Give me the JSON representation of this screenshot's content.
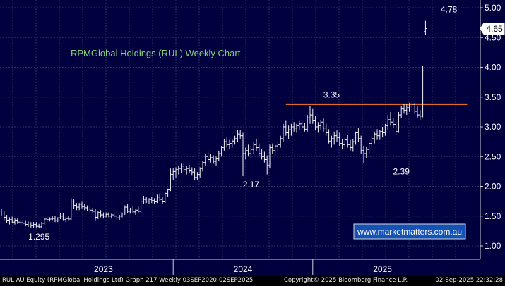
{
  "chart_data": {
    "type": "ohlc",
    "title": "RPMGlobal Holdings (RUL) Weekly Chart",
    "watermark": "www.marketmatters.com.au",
    "yticks": [
      "5.00",
      "4.50",
      "4.00",
      "3.50",
      "3.00",
      "2.50",
      "2.00",
      "1.50",
      "1.00"
    ],
    "ylim": [
      0.95,
      5.1
    ],
    "xlabels": [
      {
        "label": "2023",
        "week": 38
      },
      {
        "label": "2024",
        "week": 90
      },
      {
        "label": "2025",
        "week": 142
      }
    ],
    "year_dividers": [
      64,
      116
    ],
    "grid": true,
    "last_price": "4.65",
    "resistance": {
      "value": 3.38,
      "from_week": 106,
      "to_week": 173
    },
    "annotations": [
      {
        "text": "1.295",
        "week": 14,
        "value": 1.295
      },
      {
        "text": "2.17",
        "week": 93,
        "value": 2.17
      },
      {
        "text": "3.35",
        "week": 123,
        "value": 3.35
      },
      {
        "text": "2.39",
        "week": 149,
        "value": 2.39
      },
      {
        "text": "4.78",
        "week": 172,
        "value": 4.78
      }
    ],
    "bars": [
      [
        1.55,
        1.62,
        1.5,
        1.55
      ],
      [
        1.55,
        1.58,
        1.42,
        1.48
      ],
      [
        1.48,
        1.52,
        1.38,
        1.42
      ],
      [
        1.42,
        1.48,
        1.36,
        1.44
      ],
      [
        1.44,
        1.49,
        1.38,
        1.4
      ],
      [
        1.4,
        1.46,
        1.36,
        1.42
      ],
      [
        1.42,
        1.46,
        1.37,
        1.4
      ],
      [
        1.4,
        1.44,
        1.35,
        1.39
      ],
      [
        1.39,
        1.44,
        1.34,
        1.38
      ],
      [
        1.38,
        1.42,
        1.33,
        1.36
      ],
      [
        1.36,
        1.41,
        1.32,
        1.35
      ],
      [
        1.35,
        1.4,
        1.3,
        1.34
      ],
      [
        1.34,
        1.4,
        1.3,
        1.36
      ],
      [
        1.36,
        1.4,
        1.31,
        1.33
      ],
      [
        1.33,
        1.37,
        1.295,
        1.32
      ],
      [
        1.32,
        1.4,
        1.3,
        1.38
      ],
      [
        1.38,
        1.46,
        1.36,
        1.45
      ],
      [
        1.45,
        1.49,
        1.4,
        1.44
      ],
      [
        1.44,
        1.48,
        1.41,
        1.45
      ],
      [
        1.45,
        1.5,
        1.42,
        1.46
      ],
      [
        1.46,
        1.5,
        1.4,
        1.43
      ],
      [
        1.43,
        1.48,
        1.4,
        1.47
      ],
      [
        1.47,
        1.55,
        1.45,
        1.5
      ],
      [
        1.5,
        1.55,
        1.42,
        1.44
      ],
      [
        1.44,
        1.48,
        1.4,
        1.46
      ],
      [
        1.46,
        1.5,
        1.42,
        1.45
      ],
      [
        1.45,
        1.8,
        1.44,
        1.75
      ],
      [
        1.75,
        1.78,
        1.62,
        1.68
      ],
      [
        1.68,
        1.72,
        1.6,
        1.65
      ],
      [
        1.65,
        1.72,
        1.6,
        1.7
      ],
      [
        1.7,
        1.74,
        1.63,
        1.66
      ],
      [
        1.66,
        1.7,
        1.6,
        1.64
      ],
      [
        1.64,
        1.68,
        1.58,
        1.62
      ],
      [
        1.62,
        1.66,
        1.56,
        1.6
      ],
      [
        1.6,
        1.64,
        1.55,
        1.58
      ],
      [
        1.58,
        1.62,
        1.42,
        1.48
      ],
      [
        1.48,
        1.58,
        1.45,
        1.56
      ],
      [
        1.56,
        1.6,
        1.48,
        1.52
      ],
      [
        1.52,
        1.56,
        1.46,
        1.5
      ],
      [
        1.5,
        1.56,
        1.48,
        1.53
      ],
      [
        1.53,
        1.56,
        1.48,
        1.5
      ],
      [
        1.5,
        1.54,
        1.46,
        1.52
      ],
      [
        1.52,
        1.56,
        1.48,
        1.5
      ],
      [
        1.5,
        1.52,
        1.44,
        1.47
      ],
      [
        1.47,
        1.52,
        1.44,
        1.5
      ],
      [
        1.5,
        1.56,
        1.48,
        1.55
      ],
      [
        1.55,
        1.68,
        1.52,
        1.65
      ],
      [
        1.65,
        1.7,
        1.55,
        1.58
      ],
      [
        1.58,
        1.64,
        1.54,
        1.62
      ],
      [
        1.62,
        1.66,
        1.55,
        1.57
      ],
      [
        1.57,
        1.62,
        1.52,
        1.6
      ],
      [
        1.6,
        1.66,
        1.56,
        1.58
      ],
      [
        1.58,
        1.8,
        1.56,
        1.75
      ],
      [
        1.75,
        1.84,
        1.7,
        1.78
      ],
      [
        1.78,
        1.82,
        1.72,
        1.75
      ],
      [
        1.75,
        1.8,
        1.7,
        1.78
      ],
      [
        1.78,
        1.82,
        1.72,
        1.76
      ],
      [
        1.76,
        1.8,
        1.7,
        1.74
      ],
      [
        1.74,
        1.86,
        1.72,
        1.82
      ],
      [
        1.82,
        1.88,
        1.75,
        1.78
      ],
      [
        1.78,
        1.82,
        1.7,
        1.74
      ],
      [
        1.74,
        1.9,
        1.72,
        1.88
      ],
      [
        1.88,
        1.96,
        1.82,
        1.94
      ],
      [
        1.94,
        2.3,
        1.92,
        2.2
      ],
      [
        2.2,
        2.3,
        2.1,
        2.25
      ],
      [
        2.25,
        2.32,
        2.15,
        2.28
      ],
      [
        2.28,
        2.35,
        2.2,
        2.3
      ],
      [
        2.3,
        2.38,
        2.22,
        2.34
      ],
      [
        2.34,
        2.4,
        2.25,
        2.28
      ],
      [
        2.28,
        2.34,
        2.2,
        2.3
      ],
      [
        2.3,
        2.36,
        2.22,
        2.26
      ],
      [
        2.26,
        2.32,
        2.18,
        2.24
      ],
      [
        2.24,
        2.3,
        2.1,
        2.15
      ],
      [
        2.15,
        2.24,
        2.1,
        2.2
      ],
      [
        2.2,
        2.32,
        2.15,
        2.3
      ],
      [
        2.3,
        2.42,
        2.25,
        2.4
      ],
      [
        2.4,
        2.55,
        2.35,
        2.5
      ],
      [
        2.5,
        2.58,
        2.4,
        2.45
      ],
      [
        2.45,
        2.55,
        2.4,
        2.48
      ],
      [
        2.48,
        2.52,
        2.38,
        2.42
      ],
      [
        2.42,
        2.5,
        2.35,
        2.46
      ],
      [
        2.46,
        2.6,
        2.42,
        2.55
      ],
      [
        2.55,
        2.68,
        2.5,
        2.65
      ],
      [
        2.65,
        2.8,
        2.6,
        2.75
      ],
      [
        2.75,
        2.82,
        2.65,
        2.7
      ],
      [
        2.7,
        2.78,
        2.62,
        2.72
      ],
      [
        2.72,
        2.8,
        2.65,
        2.76
      ],
      [
        2.76,
        2.85,
        2.7,
        2.8
      ],
      [
        2.8,
        2.95,
        2.75,
        2.88
      ],
      [
        2.88,
        2.95,
        2.8,
        2.85
      ],
      [
        2.85,
        2.9,
        2.17,
        2.55
      ],
      [
        2.55,
        2.65,
        2.45,
        2.6
      ],
      [
        2.6,
        2.7,
        2.5,
        2.55
      ],
      [
        2.55,
        2.68,
        2.48,
        2.62
      ],
      [
        2.62,
        2.75,
        2.55,
        2.7
      ],
      [
        2.7,
        2.8,
        2.6,
        2.65
      ],
      [
        2.65,
        2.72,
        2.5,
        2.55
      ],
      [
        2.55,
        2.62,
        2.45,
        2.5
      ],
      [
        2.5,
        2.58,
        2.4,
        2.45
      ],
      [
        2.45,
        2.52,
        2.2,
        2.35
      ],
      [
        2.35,
        2.7,
        2.3,
        2.65
      ],
      [
        2.65,
        2.72,
        2.55,
        2.6
      ],
      [
        2.6,
        2.7,
        2.5,
        2.68
      ],
      [
        2.68,
        2.76,
        2.6,
        2.7
      ],
      [
        2.7,
        2.85,
        2.65,
        2.8
      ],
      [
        2.8,
        3.05,
        2.75,
        3.0
      ],
      [
        3.0,
        3.1,
        2.85,
        2.9
      ],
      [
        2.9,
        3.02,
        2.8,
        2.95
      ],
      [
        2.95,
        3.05,
        2.85,
        3.0
      ],
      [
        3.0,
        3.08,
        2.92,
        2.98
      ],
      [
        2.98,
        3.05,
        2.9,
        3.02
      ],
      [
        3.02,
        3.1,
        2.95,
        3.05
      ],
      [
        3.05,
        3.12,
        2.96,
        3.0
      ],
      [
        3.0,
        3.06,
        2.92,
        2.96
      ],
      [
        2.96,
        3.2,
        2.92,
        3.15
      ],
      [
        3.15,
        3.35,
        3.05,
        3.2
      ],
      [
        3.2,
        3.3,
        3.05,
        3.1
      ],
      [
        3.1,
        3.18,
        2.95,
        3.0
      ],
      [
        3.0,
        3.08,
        2.9,
        3.02
      ],
      [
        3.02,
        3.12,
        2.95,
        3.08
      ],
      [
        3.08,
        3.14,
        2.92,
        2.98
      ],
      [
        2.98,
        3.05,
        2.85,
        2.9
      ],
      [
        2.9,
        2.96,
        2.72,
        2.76
      ],
      [
        2.76,
        2.85,
        2.65,
        2.8
      ],
      [
        2.8,
        2.92,
        2.7,
        2.85
      ],
      [
        2.85,
        2.94,
        2.75,
        2.82
      ],
      [
        2.82,
        2.9,
        2.68,
        2.72
      ],
      [
        2.72,
        2.8,
        2.62,
        2.7
      ],
      [
        2.7,
        2.82,
        2.62,
        2.78
      ],
      [
        2.78,
        2.86,
        2.65,
        2.7
      ],
      [
        2.7,
        2.78,
        2.6,
        2.65
      ],
      [
        2.65,
        2.8,
        2.58,
        2.75
      ],
      [
        2.75,
        2.92,
        2.7,
        2.9
      ],
      [
        2.9,
        2.98,
        2.75,
        2.8
      ],
      [
        2.8,
        2.85,
        2.55,
        2.6
      ],
      [
        2.6,
        2.68,
        2.39,
        2.55
      ],
      [
        2.55,
        2.66,
        2.48,
        2.62
      ],
      [
        2.62,
        2.75,
        2.55,
        2.72
      ],
      [
        2.72,
        2.85,
        2.65,
        2.8
      ],
      [
        2.8,
        2.92,
        2.72,
        2.88
      ],
      [
        2.88,
        2.96,
        2.78,
        2.85
      ],
      [
        2.85,
        2.95,
        2.78,
        2.92
      ],
      [
        2.92,
        3.0,
        2.82,
        2.9
      ],
      [
        2.9,
        3.05,
        2.85,
        3.02
      ],
      [
        3.02,
        3.2,
        2.95,
        3.12
      ],
      [
        3.12,
        3.25,
        3.02,
        3.08
      ],
      [
        3.08,
        3.15,
        2.98,
        3.04
      ],
      [
        3.04,
        3.1,
        2.85,
        2.92
      ],
      [
        2.92,
        3.25,
        2.9,
        3.2
      ],
      [
        3.2,
        3.35,
        3.15,
        3.3
      ],
      [
        3.3,
        3.38,
        3.22,
        3.28
      ],
      [
        3.28,
        3.38,
        3.2,
        3.32
      ],
      [
        3.32,
        3.4,
        3.25,
        3.35
      ],
      [
        3.35,
        3.42,
        3.28,
        3.38
      ],
      [
        3.38,
        3.4,
        3.22,
        3.26
      ],
      [
        3.26,
        3.34,
        3.15,
        3.2
      ],
      [
        3.2,
        3.28,
        3.12,
        3.18
      ],
      [
        3.18,
        4.02,
        3.16,
        3.95
      ],
      [
        4.6,
        4.78,
        4.55,
        4.65
      ]
    ]
  },
  "footer": {
    "left": "RUL AU Equity (RPMGlobal Holdings Ltd) Graph 217  Weekly 03SEP2020-02SEP2025",
    "middle": "Copyright© 2025 Bloomberg Finance L.P.",
    "right": "02-Sep-2025 22:32:28"
  }
}
